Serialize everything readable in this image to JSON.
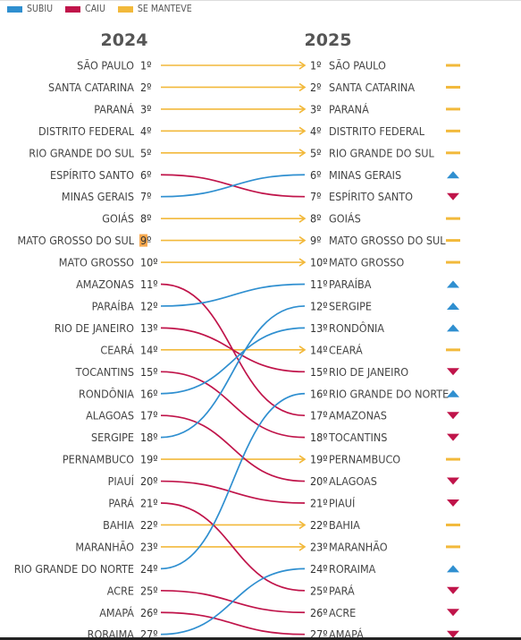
{
  "legend": [
    {
      "label": "SUBIU",
      "color": "#2f8fd0"
    },
    {
      "label": "CAIU",
      "color": "#c0144a"
    },
    {
      "label": "SE MANTEVE",
      "color": "#f2b93b"
    }
  ],
  "colors": {
    "up": "#2f8fd0",
    "down": "#c0144a",
    "same": "#f2b93b",
    "highlight": "#f7a84f"
  },
  "chart_data": {
    "type": "slope",
    "years": [
      "2024",
      "2025"
    ],
    "rows": [
      {
        "state": "SÃO PAULO",
        "rank2024": 1,
        "rank2025": 1
      },
      {
        "state": "SANTA CATARINA",
        "rank2024": 2,
        "rank2025": 2
      },
      {
        "state": "PARANÁ",
        "rank2024": 3,
        "rank2025": 3
      },
      {
        "state": "DISTRITO FEDERAL",
        "rank2024": 4,
        "rank2025": 4
      },
      {
        "state": "RIO GRANDE DO SUL",
        "rank2024": 5,
        "rank2025": 5
      },
      {
        "state": "ESPÍRITO SANTO",
        "rank2024": 6,
        "rank2025": 7
      },
      {
        "state": "MINAS GERAIS",
        "rank2024": 7,
        "rank2025": 6
      },
      {
        "state": "GOIÁS",
        "rank2024": 8,
        "rank2025": 8
      },
      {
        "state": "MATO GROSSO DO SUL",
        "rank2024": 9,
        "rank2025": 9,
        "highlight": true
      },
      {
        "state": "MATO GROSSO",
        "rank2024": 10,
        "rank2025": 10
      },
      {
        "state": "AMAZONAS",
        "rank2024": 11,
        "rank2025": 17
      },
      {
        "state": "PARAÍBA",
        "rank2024": 12,
        "rank2025": 11
      },
      {
        "state": "RIO DE JANEIRO",
        "rank2024": 13,
        "rank2025": 15
      },
      {
        "state": "CEARÁ",
        "rank2024": 14,
        "rank2025": 14
      },
      {
        "state": "TOCANTINS",
        "rank2024": 15,
        "rank2025": 18
      },
      {
        "state": "RONDÔNIA",
        "rank2024": 16,
        "rank2025": 13
      },
      {
        "state": "ALAGOAS",
        "rank2024": 17,
        "rank2025": 20
      },
      {
        "state": "SERGIPE",
        "rank2024": 18,
        "rank2025": 12
      },
      {
        "state": "PERNAMBUCO",
        "rank2024": 19,
        "rank2025": 19
      },
      {
        "state": "PIAUÍ",
        "rank2024": 20,
        "rank2025": 21
      },
      {
        "state": "PARÁ",
        "rank2024": 21,
        "rank2025": 25
      },
      {
        "state": "BAHIA",
        "rank2024": 22,
        "rank2025": 22
      },
      {
        "state": "MARANHÃO",
        "rank2024": 23,
        "rank2025": 23
      },
      {
        "state": "RIO GRANDE DO NORTE",
        "rank2024": 24,
        "rank2025": 16
      },
      {
        "state": "ACRE",
        "rank2024": 25,
        "rank2025": 26
      },
      {
        "state": "AMAPÁ",
        "rank2024": 26,
        "rank2025": 27
      },
      {
        "state": "RORAIMA",
        "rank2024": 27,
        "rank2025": 24
      }
    ]
  }
}
